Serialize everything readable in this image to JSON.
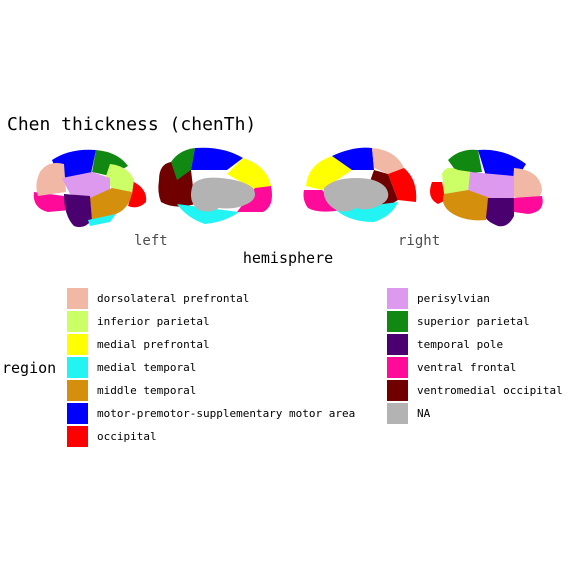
{
  "title": "Chen thickness (chenTh)",
  "hemispheres": [
    "left",
    "right"
  ],
  "axis_title": "hemisphere",
  "legend": {
    "title": "region",
    "columns": [
      [
        {
          "label": "dorsolateral prefrontal",
          "color": "#f2b8a6"
        },
        {
          "label": "inferior parietal",
          "color": "#ccff66"
        },
        {
          "label": "medial prefrontal",
          "color": "#ffff00"
        },
        {
          "label": "medial temporal",
          "color": "#22f4f4"
        },
        {
          "label": "middle temporal",
          "color": "#d4900d"
        },
        {
          "label": "motor-premotor-supplementary motor area",
          "color": "#0000ff"
        },
        {
          "label": "occipital",
          "color": "#ff0000"
        }
      ],
      [
        {
          "label": "perisylvian",
          "color": "#dd99ee"
        },
        {
          "label": "superior parietal",
          "color": "#118811"
        },
        {
          "label": "temporal pole",
          "color": "#4b0070"
        },
        {
          "label": "ventral frontal",
          "color": "#ff0a99"
        },
        {
          "label": "ventromedial occipital",
          "color": "#700000"
        },
        {
          "label": "NA",
          "color": "#b3b3b3"
        }
      ]
    ]
  }
}
